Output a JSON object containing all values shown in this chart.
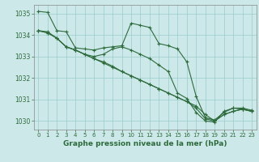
{
  "background_color": "#cce8e8",
  "grid_color": "#99cccc",
  "line_color": "#2d6b3c",
  "xlabel": "Graphe pression niveau de la mer (hPa)",
  "xlabel_fontsize": 6.5,
  "ylim": [
    1029.6,
    1035.4
  ],
  "xlim": [
    -0.5,
    23.5
  ],
  "yticks": [
    1030,
    1031,
    1032,
    1033,
    1034,
    1035
  ],
  "xticks": [
    0,
    1,
    2,
    3,
    4,
    5,
    6,
    7,
    8,
    9,
    10,
    11,
    12,
    13,
    14,
    15,
    16,
    17,
    18,
    19,
    20,
    21,
    22,
    23
  ],
  "line1": [
    1035.1,
    1035.05,
    1034.2,
    1034.15,
    1033.4,
    1033.35,
    1033.3,
    1033.4,
    1033.45,
    1033.5,
    1034.55,
    1034.45,
    1034.35,
    1033.6,
    1033.5,
    1033.35,
    1032.75,
    1031.15,
    1030.15,
    1030.05,
    1030.4,
    1030.6,
    1030.6,
    1030.5
  ],
  "line2": [
    1034.2,
    1034.15,
    1033.85,
    1033.45,
    1033.3,
    1033.1,
    1033.0,
    1033.1,
    1033.35,
    1033.45,
    1033.3,
    1033.1,
    1032.9,
    1032.6,
    1032.3,
    1031.3,
    1031.05,
    1030.4,
    1030.0,
    1029.95,
    1030.45,
    1030.6,
    1030.55,
    1030.45
  ],
  "line3": [
    1034.2,
    1034.1,
    1033.85,
    1033.45,
    1033.3,
    1033.1,
    1032.9,
    1032.75,
    1032.55,
    1032.3,
    1032.1,
    1031.9,
    1031.7,
    1031.5,
    1031.3,
    1031.1,
    1030.9,
    1030.6,
    1030.1,
    1030.0,
    1030.3,
    1030.45,
    1030.55,
    1030.45
  ],
  "line4": [
    1034.2,
    1034.1,
    1033.85,
    1033.45,
    1033.3,
    1033.1,
    1032.9,
    1032.7,
    1032.5,
    1032.3,
    1032.1,
    1031.9,
    1031.7,
    1031.5,
    1031.3,
    1031.1,
    1030.9,
    1030.7,
    1030.3,
    1030.0,
    1030.3,
    1030.45,
    1030.55,
    1030.45
  ]
}
